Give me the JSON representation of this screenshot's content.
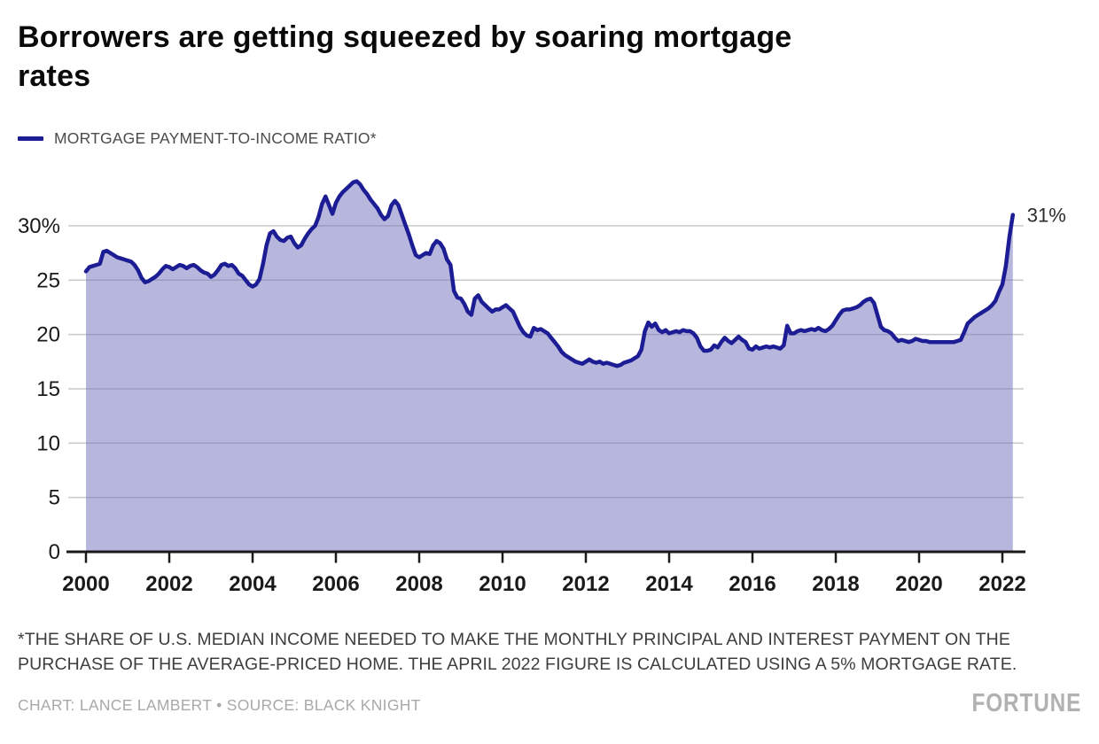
{
  "title": {
    "lines": [
      "Borrowers are getting squeezed by soaring mortgage",
      "rates"
    ]
  },
  "legend": {
    "label": "MORTGAGE PAYMENT-TO-INCOME RATIO*",
    "swatch_color": "#1c1c94"
  },
  "footnote": {
    "lines": [
      "*THE SHARE OF U.S. MEDIAN INCOME NEEDED TO MAKE THE MONTHLY PRINCIPAL AND INTEREST PAYMENT ON THE",
      "PURCHASE OF THE AVERAGE-PRICED HOME. THE APRIL 2022 FIGURE IS CALCULATED USING A 5% MORTGAGE RATE."
    ]
  },
  "credit": "CHART: LANCE LAMBERT • SOURCE: BLACK KNIGHT",
  "brand": "FORTUNE",
  "colors": {
    "line": "#1c1c94",
    "fill": "#7070bb",
    "fill_opacity": 0.5,
    "grid": "#c9c9c9",
    "axis": "#1a1a1a",
    "tick_label": "#1a1a1a",
    "end_label": "#2b2b2b"
  },
  "chart_data": {
    "type": "area",
    "title": "Borrowers are getting squeezed by soaring mortgage rates",
    "series_name": "MORTGAGE PAYMENT-TO-INCOME RATIO*",
    "x_start_year": 2000,
    "x_step_months": 1,
    "x_end": "April 2022",
    "x_tick_years": [
      2000,
      2002,
      2004,
      2006,
      2008,
      2010,
      2012,
      2014,
      2016,
      2018,
      2020,
      2022
    ],
    "y_ticks": [
      0,
      5,
      10,
      15,
      20,
      25,
      30
    ],
    "y_top_tick_label": "30%",
    "ylim": [
      0,
      35
    ],
    "grid": true,
    "legend_position": "top-left",
    "end_label": "31%",
    "end_value": 31.0,
    "values": [
      25.8,
      26.2,
      26.3,
      26.4,
      26.5,
      27.6,
      27.7,
      27.5,
      27.3,
      27.1,
      27.0,
      26.9,
      26.8,
      26.7,
      26.4,
      25.9,
      25.2,
      24.8,
      24.9,
      25.1,
      25.3,
      25.6,
      26.0,
      26.3,
      26.2,
      26.0,
      26.2,
      26.4,
      26.3,
      26.1,
      26.3,
      26.4,
      26.2,
      25.9,
      25.7,
      25.6,
      25.3,
      25.5,
      25.9,
      26.4,
      26.5,
      26.3,
      26.4,
      26.1,
      25.6,
      25.4,
      25.0,
      24.6,
      24.4,
      24.6,
      25.1,
      26.5,
      28.2,
      29.3,
      29.5,
      29.0,
      28.7,
      28.6,
      28.9,
      29.0,
      28.4,
      28.0,
      28.2,
      28.8,
      29.3,
      29.7,
      30.0,
      30.8,
      32.0,
      32.7,
      31.9,
      31.1,
      32.1,
      32.7,
      33.1,
      33.4,
      33.7,
      34.0,
      34.1,
      33.8,
      33.3,
      32.9,
      32.4,
      32.0,
      31.6,
      31.0,
      30.6,
      30.9,
      31.9,
      32.3,
      31.9,
      31.0,
      30.1,
      29.2,
      28.2,
      27.3,
      27.1,
      27.3,
      27.5,
      27.4,
      28.2,
      28.6,
      28.4,
      27.9,
      26.9,
      26.4,
      24.0,
      23.4,
      23.3,
      22.8,
      22.1,
      21.8,
      23.3,
      23.6,
      23.0,
      22.7,
      22.4,
      22.1,
      22.3,
      22.3,
      22.5,
      22.7,
      22.4,
      22.1,
      21.4,
      20.7,
      20.2,
      19.9,
      19.8,
      20.6,
      20.4,
      20.5,
      20.3,
      20.1,
      19.7,
      19.3,
      18.9,
      18.4,
      18.1,
      17.9,
      17.7,
      17.5,
      17.4,
      17.3,
      17.5,
      17.7,
      17.5,
      17.4,
      17.5,
      17.3,
      17.4,
      17.3,
      17.2,
      17.1,
      17.2,
      17.4,
      17.5,
      17.6,
      17.8,
      18.0,
      18.6,
      20.3,
      21.1,
      20.7,
      21.0,
      20.4,
      20.2,
      20.4,
      20.1,
      20.2,
      20.3,
      20.2,
      20.4,
      20.3,
      20.3,
      20.1,
      19.7,
      18.9,
      18.5,
      18.5,
      18.6,
      19.0,
      18.8,
      19.3,
      19.7,
      19.4,
      19.2,
      19.5,
      19.8,
      19.5,
      19.3,
      18.7,
      18.6,
      18.9,
      18.7,
      18.8,
      18.9,
      18.8,
      18.9,
      18.8,
      18.7,
      19.0,
      20.8,
      20.1,
      20.1,
      20.3,
      20.4,
      20.3,
      20.4,
      20.5,
      20.4,
      20.6,
      20.4,
      20.3,
      20.5,
      20.8,
      21.3,
      21.8,
      22.2,
      22.3,
      22.3,
      22.4,
      22.5,
      22.7,
      23.0,
      23.2,
      23.3,
      22.9,
      21.8,
      20.7,
      20.4,
      20.3,
      20.1,
      19.7,
      19.4,
      19.5,
      19.4,
      19.3,
      19.4,
      19.6,
      19.5,
      19.4,
      19.4,
      19.3,
      19.3,
      19.3,
      19.3,
      19.3,
      19.3,
      19.3,
      19.3,
      19.4,
      19.5,
      20.2,
      21.0,
      21.3,
      21.6,
      21.8,
      22.0,
      22.2,
      22.4,
      22.7,
      23.1,
      23.9,
      24.6,
      26.3,
      28.9,
      31.0
    ]
  }
}
